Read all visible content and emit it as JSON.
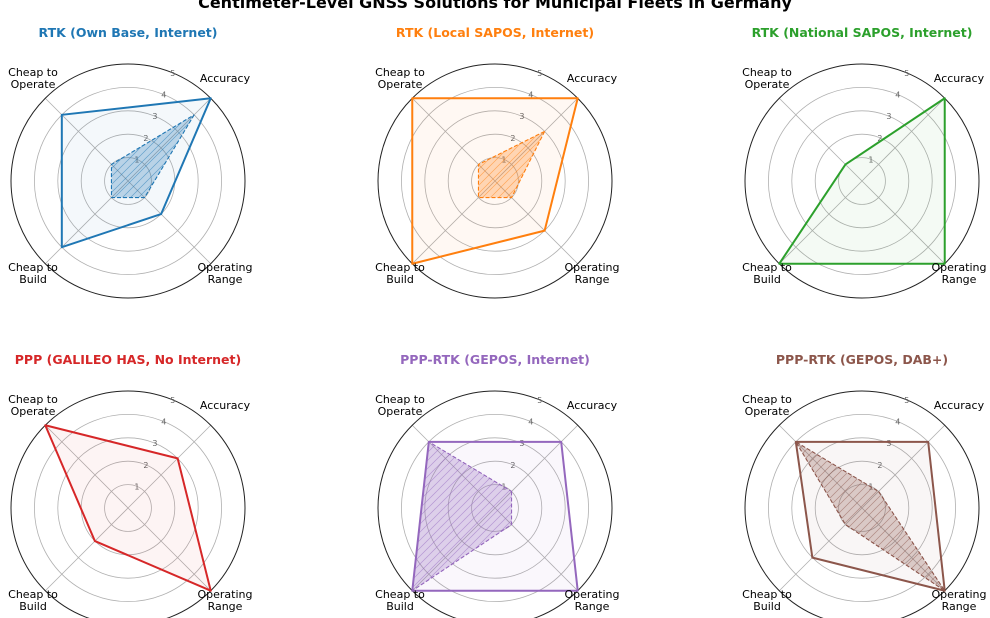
{
  "title": "Centimeter-Level GNSS Solutions for Municipal Fleets in Germany",
  "axes": [
    "Accuracy",
    "Operating\nRange",
    "Cheap to\nBuild",
    "Cheap to\nOperate"
  ],
  "radial_ticks": [
    "1",
    "2",
    "3",
    "4",
    "5"
  ],
  "chart_data": [
    {
      "type": "radar",
      "title": "RTK (Own Base, Internet)",
      "color": "#1f77b4",
      "series": [
        {
          "values": [
            5,
            2,
            4,
            4
          ]
        },
        {
          "values": [
            4,
            1,
            1,
            1
          ]
        }
      ],
      "rlim": [
        0,
        5
      ],
      "grid": true
    },
    {
      "type": "radar",
      "title": "RTK (Local SAPOS, Internet)",
      "color": "#ff7f0e",
      "series": [
        {
          "values": [
            5,
            3,
            5,
            5
          ]
        },
        {
          "values": [
            3,
            1,
            1,
            1
          ]
        }
      ],
      "rlim": [
        0,
        5
      ],
      "grid": true
    },
    {
      "type": "radar",
      "title": "RTK (National SAPOS, Internet)",
      "color": "#2ca02c",
      "series": [
        {
          "values": [
            5,
            5,
            5,
            1
          ]
        }
      ],
      "rlim": [
        0,
        5
      ],
      "grid": true
    },
    {
      "type": "radar",
      "title": "PPP (GALILEO HAS, No Internet)",
      "color": "#d62728",
      "series": [
        {
          "values": [
            3,
            5,
            2,
            5
          ]
        }
      ],
      "rlim": [
        0,
        5
      ],
      "grid": true
    },
    {
      "type": "radar",
      "title": "PPP-RTK (GEPOS, Internet)",
      "color": "#9467bd",
      "series": [
        {
          "values": [
            4,
            5,
            5,
            4
          ]
        },
        {
          "values": [
            1,
            1,
            5,
            4
          ]
        }
      ],
      "rlim": [
        0,
        5
      ],
      "grid": true
    },
    {
      "type": "radar",
      "title": "PPP-RTK (GEPOS, DAB+)",
      "color": "#8c564b",
      "series": [
        {
          "values": [
            4,
            5,
            3,
            4
          ]
        },
        {
          "values": [
            1,
            5,
            1,
            4
          ]
        }
      ],
      "rlim": [
        0,
        5
      ],
      "grid": true
    }
  ]
}
